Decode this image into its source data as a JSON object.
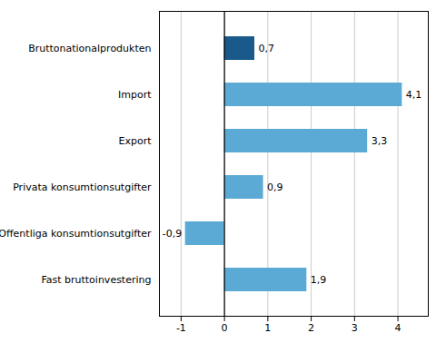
{
  "chart_data": {
    "type": "bar",
    "orientation": "horizontal",
    "categories": [
      "Fast bruttoinvestering",
      "Offentliga konsumtionsutgifter",
      "Privata konsumtionsutgifter",
      "Export",
      "Import",
      "Bruttonationalprodukten"
    ],
    "values": [
      1.9,
      -0.9,
      0.9,
      3.3,
      4.1,
      0.7
    ],
    "value_labels": [
      "1,9",
      "-0,9",
      "0,9",
      "3,3",
      "4,1",
      "0,7"
    ],
    "colors": [
      "#5baad6",
      "#5baad6",
      "#5baad6",
      "#5baad6",
      "#5baad6",
      "#1a5a8a"
    ],
    "xlim": [
      -1.5,
      4.7
    ],
    "xticks": [
      -1,
      0,
      1,
      2,
      3,
      4
    ],
    "grid": true,
    "data_labels": true
  }
}
